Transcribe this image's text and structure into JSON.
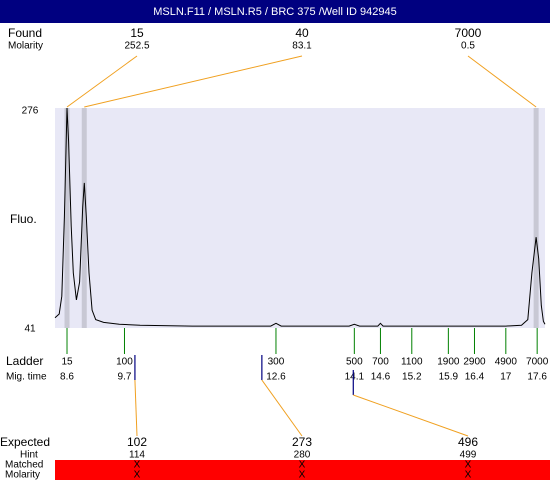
{
  "header": {
    "title": "MSLN.F11 / MSLN.R5 / BRC 375 /Well ID 942945"
  },
  "found": {
    "label": "Found",
    "molarity_label": "Molarity",
    "peaks": [
      {
        "size": 15,
        "molarity": 252.5,
        "time": 8.6
      },
      {
        "size": 40,
        "molarity": 83.1,
        "time": 8.93
      },
      {
        "size": 7000,
        "molarity": 0.5,
        "time": 17.58
      }
    ]
  },
  "chart_data": {
    "type": "line",
    "ylabel": "Fluo.",
    "xlim": [
      8.37,
      17.75
    ],
    "ylim": [
      41,
      276
    ],
    "yticks": [
      41,
      276
    ],
    "color": "#000000",
    "x": [
      8.37,
      8.45,
      8.5,
      8.55,
      8.6,
      8.63,
      8.68,
      8.72,
      8.78,
      8.84,
      8.9,
      8.93,
      8.97,
      9.02,
      9.08,
      9.15,
      9.3,
      9.6,
      10,
      11,
      12.5,
      12.6,
      12.7,
      14,
      14.1,
      14.2,
      14.55,
      14.6,
      14.65,
      17,
      17.3,
      17.42,
      17.5,
      17.58,
      17.63,
      17.68,
      17.72,
      17.75
    ],
    "values": [
      52,
      56,
      75,
      160,
      276,
      240,
      150,
      100,
      71,
      90,
      170,
      196,
      160,
      100,
      60,
      50,
      47,
      45,
      44,
      43,
      43,
      46,
      43,
      43,
      45,
      43,
      43,
      46,
      43,
      43,
      44,
      50,
      100,
      138,
      115,
      65,
      48,
      45
    ]
  },
  "ladder": {
    "label": "Ladder",
    "time_label": "Mig. time",
    "items": [
      {
        "size": 15,
        "time": 8.6
      },
      {
        "size": 100,
        "time": 9.7
      },
      {
        "size": 300,
        "time": 12.6
      },
      {
        "size": 500,
        "time": 14.1
      },
      {
        "size": 700,
        "time": 14.6
      },
      {
        "size": 1100,
        "time": 15.2
      },
      {
        "size": 1900,
        "time": 15.9
      },
      {
        "size": 2900,
        "time": 16.4
      },
      {
        "size": 4900,
        "time": 17
      },
      {
        "size": 7000,
        "time": 17.6
      }
    ]
  },
  "expected": {
    "label": "Expected",
    "hint_label": "Hint",
    "matched_label": "Matched",
    "molarity_label": "Molarity",
    "peaks": [
      {
        "size": 102,
        "hint": 114,
        "matched": "X",
        "molarity": "X",
        "time": 9.9
      },
      {
        "size": 273,
        "hint": 280,
        "matched": "X",
        "molarity": "X",
        "time": 12.33
      },
      {
        "size": 496,
        "hint": 499,
        "matched": "X",
        "molarity": "X",
        "time": 14.08
      }
    ]
  }
}
